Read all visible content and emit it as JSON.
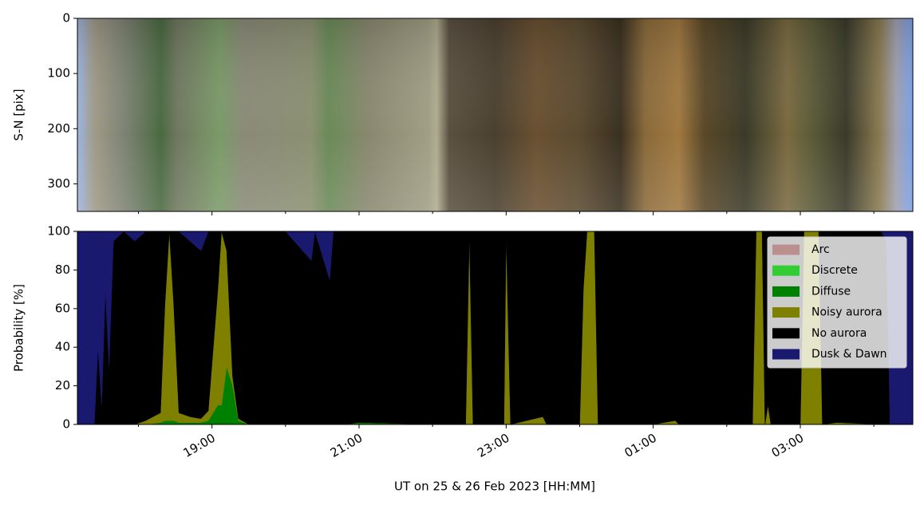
{
  "chart_data": [
    {
      "type": "image",
      "ylabel": "S-N [pix]",
      "ylim": [
        350,
        0
      ],
      "yticks": [
        0,
        100,
        200,
        300
      ],
      "xlim": [
        17.17,
        28.53
      ]
    },
    {
      "type": "area",
      "stacked": true,
      "ylabel": "Probability [%]",
      "xlabel": "UT on 25 & 26 Feb 2023 [HH:MM]",
      "xlim": [
        17.17,
        28.53
      ],
      "ylim": [
        0,
        100
      ],
      "yticks": [
        0,
        20,
        40,
        60,
        80,
        100
      ],
      "xticks": [
        {
          "value": 19,
          "label": "19:00"
        },
        {
          "value": 21,
          "label": "21:00"
        },
        {
          "value": 23,
          "label": "23:00"
        },
        {
          "value": 25,
          "label": "01:00"
        },
        {
          "value": 27,
          "label": "03:00"
        }
      ],
      "xminorticks": [
        18,
        20,
        22,
        24,
        26,
        28
      ],
      "legend": "upper right",
      "x": [
        17.17,
        17.4,
        17.45,
        17.5,
        17.55,
        17.6,
        17.66,
        17.8,
        17.95,
        18.1,
        18.3,
        18.36,
        18.42,
        18.48,
        18.55,
        18.7,
        18.85,
        18.95,
        19.08,
        19.13,
        19.2,
        19.28,
        19.36,
        19.5,
        20.0,
        20.35,
        20.4,
        20.6,
        20.65,
        20.8,
        21.0,
        22.0,
        22.45,
        22.5,
        22.55,
        22.97,
        23.0,
        23.06,
        23.5,
        23.55,
        24.0,
        24.05,
        24.1,
        24.2,
        24.25,
        25.0,
        25.3,
        25.35,
        26.35,
        26.4,
        26.48,
        26.52,
        26.56,
        26.6,
        27.0,
        27.05,
        27.25,
        27.3,
        27.5,
        28.1,
        28.17,
        28.22,
        28.53
      ],
      "series": [
        {
          "name": "Arc",
          "color": "#bc8f8f",
          "values": [
            0,
            0,
            0,
            0,
            0,
            0,
            0,
            0,
            0,
            0,
            0,
            0,
            0,
            0,
            0,
            0,
            0,
            0,
            0,
            0,
            0,
            0,
            0,
            0,
            0,
            0,
            0,
            0,
            0,
            0,
            0,
            0,
            0,
            0,
            0,
            0,
            0,
            0,
            0,
            0,
            0,
            0,
            0,
            0,
            0,
            0,
            0,
            0,
            0,
            0,
            0,
            0,
            0,
            0,
            0,
            0,
            0,
            0,
            0,
            0,
            0,
            0,
            0
          ]
        },
        {
          "name": "Discrete",
          "color": "#32cd32",
          "values": [
            0,
            0,
            0,
            0,
            0,
            0,
            0,
            0,
            0,
            0,
            0,
            0,
            0,
            0,
            0,
            0,
            0,
            0,
            0,
            0,
            0,
            0,
            0,
            0,
            0,
            0,
            0,
            0,
            0,
            0,
            0,
            0,
            0,
            0,
            0,
            0,
            0,
            0,
            0,
            0,
            0,
            0,
            0,
            0,
            0,
            0,
            0,
            0,
            0,
            0,
            0,
            0,
            0,
            0,
            0,
            0,
            0,
            0,
            0,
            0,
            0,
            0,
            0
          ]
        },
        {
          "name": "Diffuse",
          "color": "#008000",
          "values": [
            0,
            0,
            0,
            0,
            0,
            0,
            0,
            0,
            0,
            0,
            1,
            2,
            2,
            2,
            1,
            1,
            1,
            2,
            10,
            10,
            30,
            20,
            2,
            0,
            0,
            0,
            0,
            0,
            0,
            0,
            1,
            0,
            0,
            0,
            0,
            0,
            0,
            0,
            0,
            0,
            0,
            0,
            0,
            0,
            0,
            0,
            0,
            0,
            0,
            0,
            0,
            0,
            0,
            0,
            0,
            0,
            0,
            0,
            0,
            0,
            0,
            0,
            0
          ]
        },
        {
          "name": "Noisy aurora",
          "color": "#808000",
          "values": [
            0,
            0,
            0,
            0,
            0,
            0,
            0,
            0,
            0,
            2,
            5,
            60,
            98,
            60,
            5,
            3,
            2,
            5,
            60,
            90,
            60,
            5,
            1,
            0,
            0,
            0,
            0,
            0,
            0,
            0,
            0,
            0,
            0,
            98,
            0,
            0,
            98,
            0,
            4,
            0,
            0,
            70,
            100,
            100,
            0,
            0,
            2,
            0,
            0,
            100,
            100,
            0,
            10,
            0,
            0,
            100,
            100,
            0,
            1,
            0,
            0,
            0,
            0
          ]
        },
        {
          "name": "No aurora",
          "color": "#000000",
          "values": [
            0,
            0,
            40,
            10,
            70,
            30,
            95,
            100,
            95,
            98,
            94,
            38,
            0,
            38,
            94,
            91,
            87,
            93,
            30,
            0,
            10,
            75,
            97,
            100,
            100,
            85,
            100,
            75,
            100,
            100,
            99,
            100,
            100,
            2,
            100,
            100,
            2,
            100,
            96,
            100,
            100,
            30,
            0,
            0,
            100,
            100,
            98,
            100,
            100,
            0,
            0,
            100,
            90,
            100,
            100,
            0,
            0,
            100,
            99,
            100,
            95,
            0,
            0
          ]
        },
        {
          "name": "Dusk & Dawn",
          "color": "#191970",
          "values": [
            100,
            100,
            60,
            90,
            30,
            70,
            5,
            0,
            5,
            0,
            0,
            0,
            0,
            0,
            0,
            5,
            10,
            0,
            0,
            0,
            0,
            0,
            0,
            0,
            0,
            15,
            0,
            25,
            0,
            0,
            0,
            0,
            0,
            0,
            0,
            0,
            0,
            0,
            0,
            0,
            0,
            0,
            0,
            0,
            0,
            0,
            0,
            0,
            0,
            0,
            0,
            0,
            0,
            0,
            0,
            0,
            0,
            0,
            0,
            0,
            5,
            100,
            100
          ]
        }
      ]
    }
  ]
}
